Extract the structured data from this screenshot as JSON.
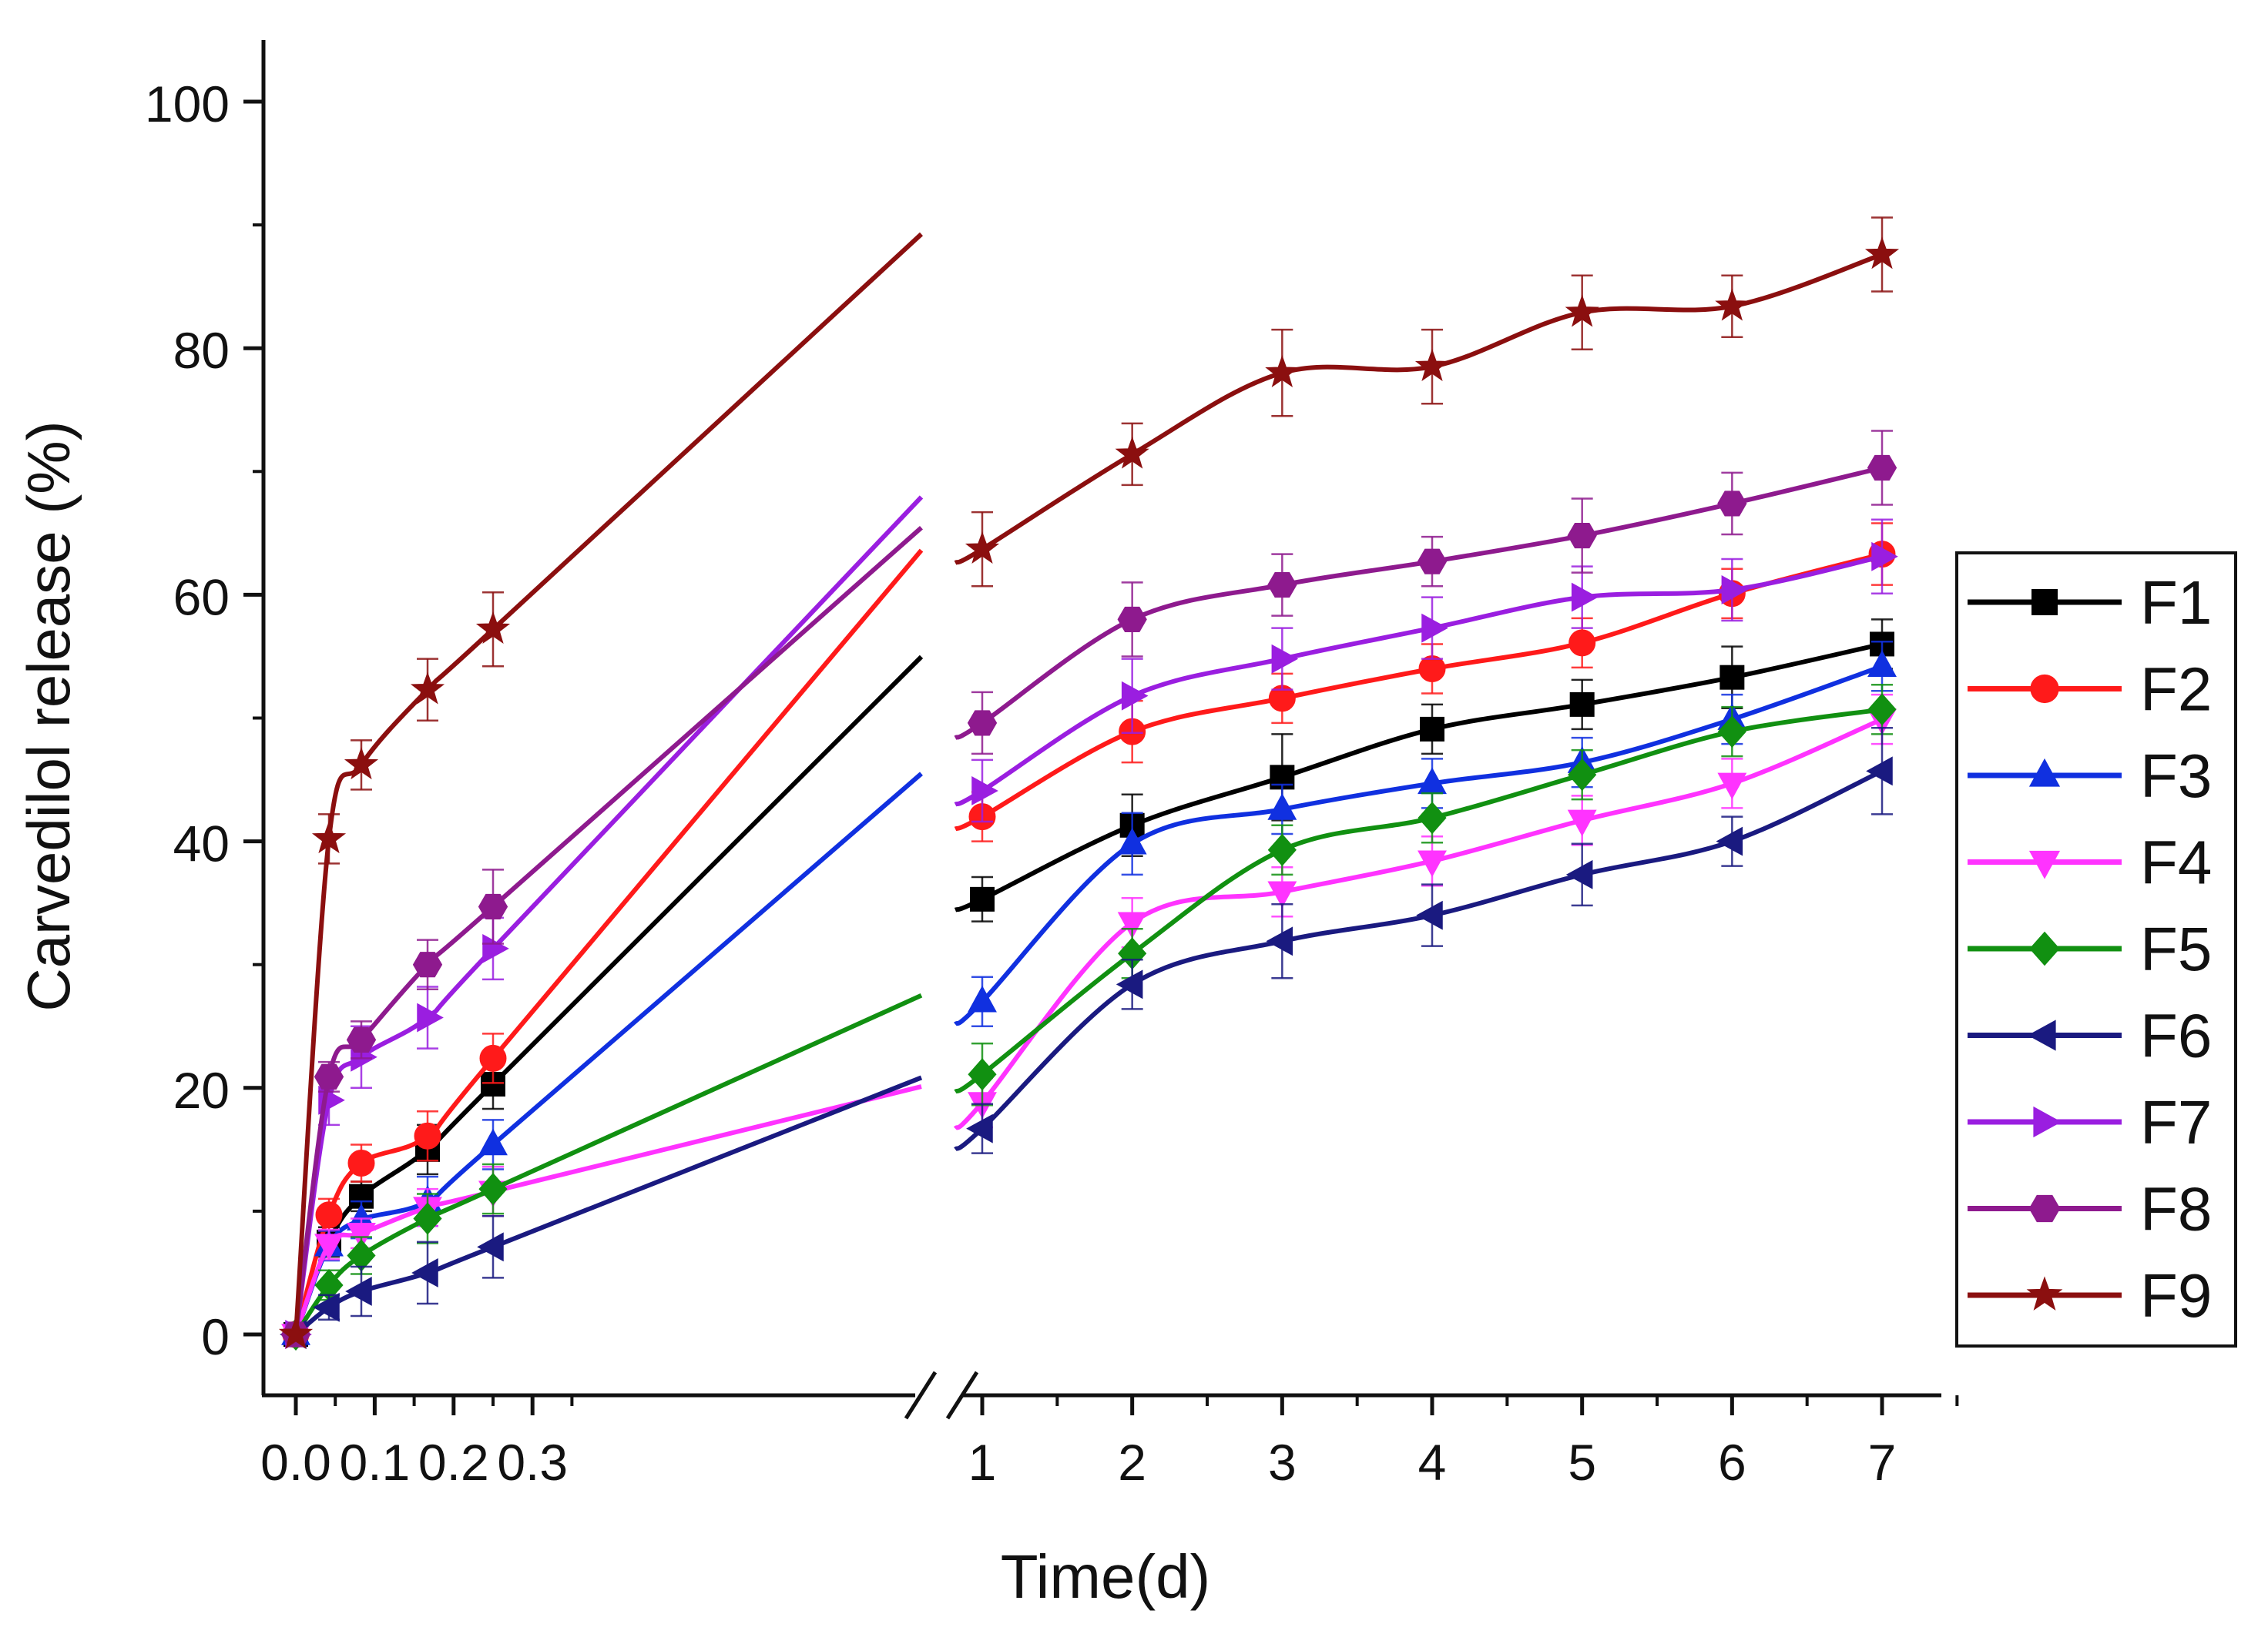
{
  "chart_data": {
    "type": "line",
    "title": "",
    "xlabel": "Time(d)",
    "ylabel": "Carvedilol release (%)",
    "ylim": [
      0,
      100
    ],
    "y_ticks": [
      "0",
      "20",
      "40",
      "60",
      "80",
      "100"
    ],
    "x_ticks": [
      "0.0",
      "0.1",
      "0.2",
      "0.3",
      "1",
      "2",
      "3",
      "4",
      "5",
      "6",
      "7"
    ],
    "x_axis_break": "between 0.35 and 1",
    "grid": false,
    "legend_position": "right",
    "x": [
      0,
      0.042,
      0.083,
      0.167,
      0.25,
      1,
      2,
      3,
      4,
      5,
      6,
      7
    ],
    "series": [
      {
        "name": "F1",
        "color": "#000000",
        "marker": "square",
        "values": [
          0,
          7.5,
          11.2,
          15,
          20.3,
          35.3,
          41.3,
          45.2,
          49.1,
          51.1,
          53.3,
          56
        ],
        "errors": [
          0,
          1.2,
          1.2,
          2.0,
          2.0,
          1.8,
          2.5,
          3.5,
          2.0,
          2.0,
          2.5,
          2.0
        ]
      },
      {
        "name": "F2",
        "color": "#ff1a1a",
        "marker": "circle",
        "values": [
          0,
          9.7,
          13.9,
          16.1,
          22.4,
          42,
          48.9,
          51.6,
          54,
          56.1,
          60.1,
          63.3
        ],
        "errors": [
          0,
          1.3,
          1.5,
          2.0,
          2.0,
          2.0,
          2.5,
          2.0,
          2.0,
          2.0,
          2.0,
          2.5
        ]
      },
      {
        "name": "F3",
        "color": "#1030e0",
        "marker": "triangle-up",
        "values": [
          0,
          7.2,
          9.3,
          10.8,
          15.4,
          27,
          39.8,
          42.6,
          44.7,
          46.4,
          49.9,
          54.2
        ],
        "errors": [
          0,
          1.2,
          1.5,
          2.0,
          2.0,
          2.0,
          2.5,
          2.0,
          2.0,
          2.0,
          2.0,
          2.0
        ]
      },
      {
        "name": "F4",
        "color": "#ff33ff",
        "marker": "triangle-down",
        "values": [
          0,
          7.3,
          8.2,
          10.3,
          11.6,
          18.8,
          33.4,
          35.9,
          38.4,
          41.7,
          44.7,
          49.9
        ],
        "errors": [
          0,
          1.2,
          1.2,
          1.5,
          2.0,
          2.0,
          2.0,
          2.0,
          2.0,
          2.0,
          2.0,
          2.0
        ]
      },
      {
        "name": "F5",
        "color": "#119011",
        "marker": "diamond",
        "values": [
          0,
          4,
          6.4,
          9.4,
          11.8,
          21.1,
          30.9,
          39.3,
          41.9,
          45.4,
          48.9,
          50.7
        ],
        "errors": [
          0,
          1.2,
          1.5,
          2.0,
          2.0,
          2.5,
          2.0,
          2.0,
          2.0,
          2.0,
          2.0,
          2.0
        ]
      },
      {
        "name": "F6",
        "color": "#1a1a80",
        "marker": "triangle-left",
        "values": [
          0,
          2.2,
          3.5,
          5,
          7.1,
          16.7,
          28.4,
          31.9,
          34,
          37.3,
          40,
          45.7
        ],
        "errors": [
          0,
          1.0,
          2.0,
          2.5,
          2.5,
          2.0,
          2.0,
          3.0,
          2.5,
          2.5,
          2.0,
          3.5
        ]
      },
      {
        "name": "F7",
        "color": "#9a1ee0",
        "marker": "triangle-right",
        "values": [
          0,
          19,
          22.5,
          25.7,
          31.3,
          44.1,
          51.8,
          54.8,
          57.3,
          59.8,
          60.4,
          63.1
        ],
        "errors": [
          0,
          2.0,
          2.5,
          2.5,
          2.5,
          2.5,
          3.0,
          2.5,
          2.5,
          2.5,
          2.5,
          3.0
        ]
      },
      {
        "name": "F8",
        "color": "#8e1a8e",
        "marker": "hexagon",
        "values": [
          0,
          20.9,
          23.9,
          30,
          34.7,
          49.6,
          58,
          60.8,
          62.7,
          64.8,
          67.4,
          70.3
        ],
        "errors": [
          0,
          1.2,
          1.5,
          2.0,
          3.0,
          2.5,
          3.0,
          2.5,
          2.0,
          3.0,
          2.5,
          3.0
        ]
      },
      {
        "name": "F9",
        "color": "#8b0f0f",
        "marker": "star",
        "values": [
          0,
          40.2,
          46.2,
          52.3,
          57.2,
          63.7,
          71.4,
          78,
          78.5,
          82.9,
          83.4,
          87.6
        ],
        "errors": [
          0,
          2.0,
          2.0,
          2.5,
          3.0,
          3.0,
          2.5,
          3.5,
          3.0,
          3.0,
          2.5,
          3.0
        ]
      }
    ]
  }
}
